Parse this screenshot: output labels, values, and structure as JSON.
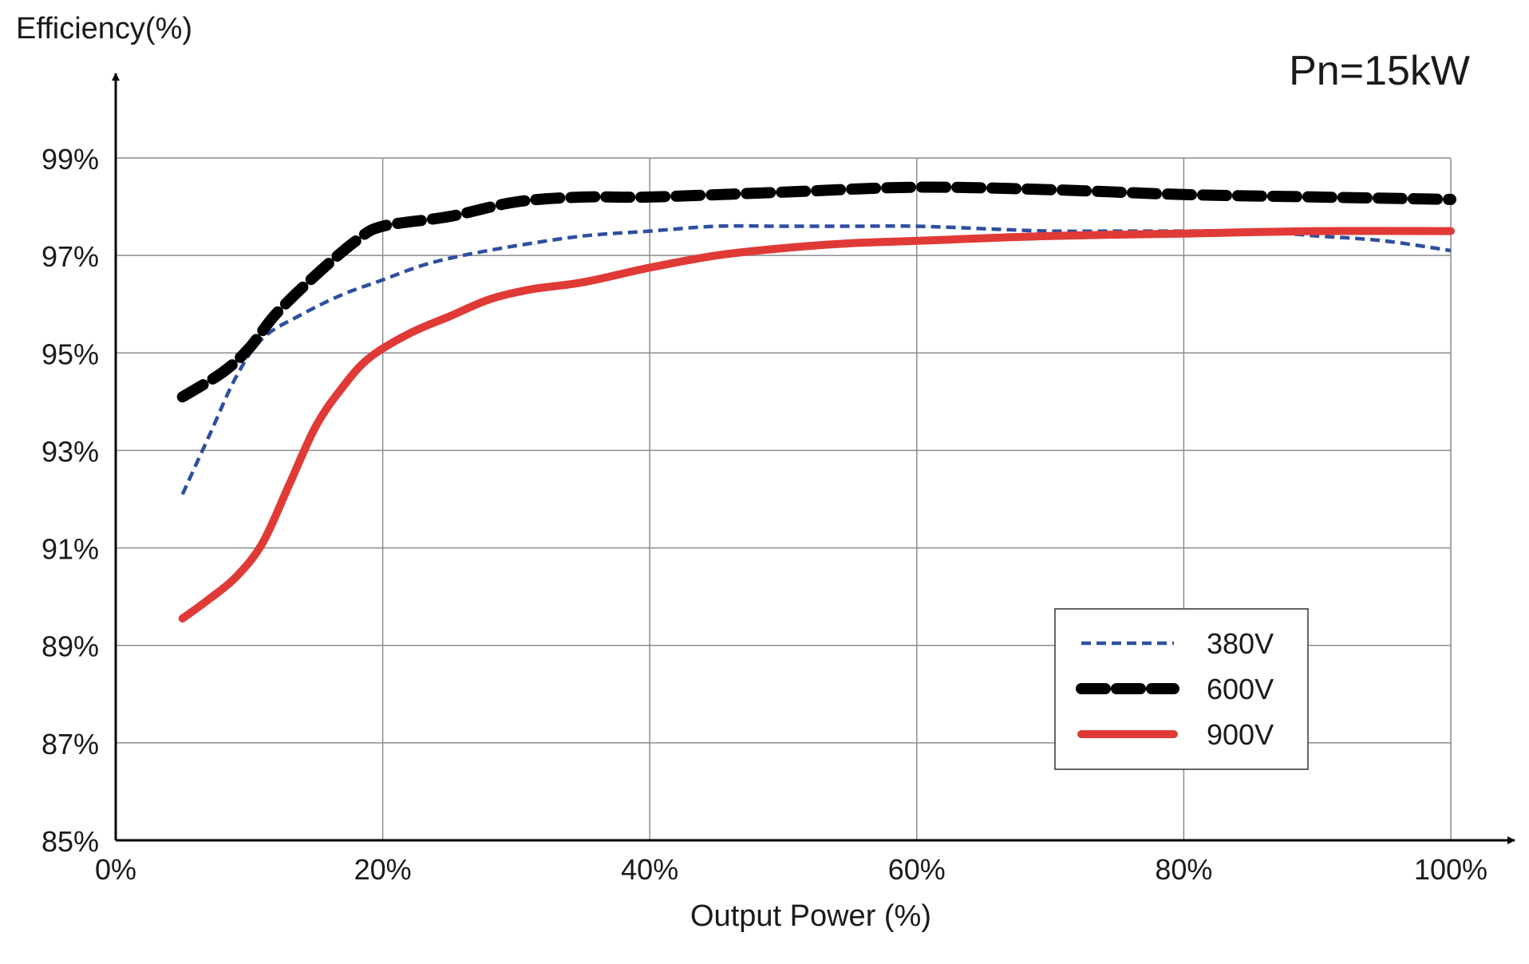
{
  "chart_data": {
    "type": "line",
    "title": "",
    "annotation": "Pn=15kW",
    "xlabel": "Output Power (%)",
    "ylabel": "Efficiency(%)",
    "xlim": [
      0,
      100
    ],
    "ylim": [
      85,
      99
    ],
    "x_ticks": [
      0,
      20,
      40,
      60,
      80,
      100
    ],
    "x_tick_labels": [
      "0%",
      "20%",
      "40%",
      "60%",
      "80%",
      "100%"
    ],
    "y_ticks": [
      85,
      87,
      89,
      91,
      93,
      95,
      97,
      99
    ],
    "y_tick_labels": [
      "85%",
      "87%",
      "89%",
      "91%",
      "93%",
      "95%",
      "97%",
      "99%"
    ],
    "grid": true,
    "legend_position": "bottom-right",
    "series": [
      {
        "name": "380V",
        "color": "#2e4fa0",
        "style": "dashed-thin",
        "points": [
          [
            5,
            92.1
          ],
          [
            7,
            93.3
          ],
          [
            9,
            94.5
          ],
          [
            11,
            95.3
          ],
          [
            14,
            95.8
          ],
          [
            17,
            96.2
          ],
          [
            20,
            96.5
          ],
          [
            23,
            96.8
          ],
          [
            26,
            97.0
          ],
          [
            30,
            97.2
          ],
          [
            35,
            97.4
          ],
          [
            40,
            97.5
          ],
          [
            45,
            97.6
          ],
          [
            50,
            97.6
          ],
          [
            55,
            97.6
          ],
          [
            60,
            97.6
          ],
          [
            65,
            97.55
          ],
          [
            70,
            97.5
          ],
          [
            75,
            97.5
          ],
          [
            80,
            97.5
          ],
          [
            85,
            97.5
          ],
          [
            90,
            97.4
          ],
          [
            95,
            97.3
          ],
          [
            100,
            97.1
          ]
        ]
      },
      {
        "name": "600V",
        "color": "#000000",
        "style": "dashed-thick",
        "points": [
          [
            5,
            94.1
          ],
          [
            8,
            94.6
          ],
          [
            10,
            95.1
          ],
          [
            12,
            95.8
          ],
          [
            15,
            96.6
          ],
          [
            18,
            97.3
          ],
          [
            20,
            97.6
          ],
          [
            25,
            97.8
          ],
          [
            30,
            98.1
          ],
          [
            35,
            98.2
          ],
          [
            40,
            98.2
          ],
          [
            50,
            98.3
          ],
          [
            60,
            98.4
          ],
          [
            70,
            98.35
          ],
          [
            80,
            98.25
          ],
          [
            90,
            98.2
          ],
          [
            100,
            98.15
          ]
        ]
      },
      {
        "name": "900V",
        "color": "#e03a36",
        "style": "solid",
        "points": [
          [
            5,
            89.55
          ],
          [
            7,
            89.95
          ],
          [
            9,
            90.4
          ],
          [
            11,
            91.1
          ],
          [
            13,
            92.3
          ],
          [
            15,
            93.5
          ],
          [
            17,
            94.3
          ],
          [
            19,
            94.9
          ],
          [
            22,
            95.4
          ],
          [
            25,
            95.75
          ],
          [
            28,
            96.1
          ],
          [
            31,
            96.3
          ],
          [
            35,
            96.45
          ],
          [
            40,
            96.75
          ],
          [
            45,
            97.0
          ],
          [
            50,
            97.15
          ],
          [
            55,
            97.25
          ],
          [
            60,
            97.3
          ],
          [
            70,
            97.4
          ],
          [
            80,
            97.45
          ],
          [
            90,
            97.5
          ],
          [
            100,
            97.5
          ]
        ]
      }
    ]
  }
}
